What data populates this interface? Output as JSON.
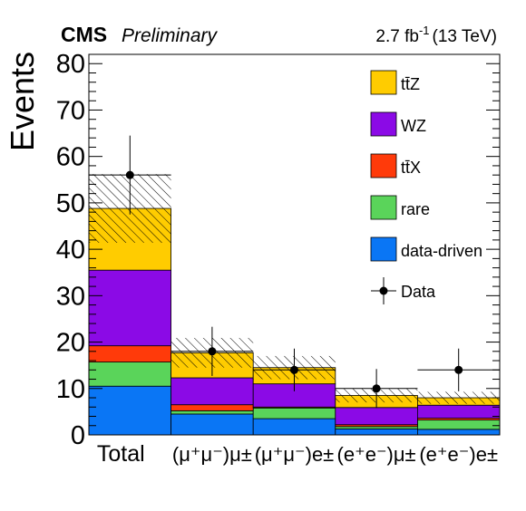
{
  "header": {
    "experiment": "CMS",
    "status": "Preliminary",
    "lumi_value": "2.7 fb",
    "lumi_exp": "-1",
    "energy": "(13 TeV)"
  },
  "chart_data": {
    "type": "bar",
    "stacked": true,
    "ylabel": "Events",
    "xlabel": "",
    "ylim": [
      0,
      82
    ],
    "yticks": [
      0,
      10,
      20,
      30,
      40,
      50,
      60,
      70,
      80
    ],
    "categories": [
      "Total",
      "(μ⁺μ⁻)μ±",
      "(μ⁺μ⁻)e±",
      "(e⁺e⁻)μ±",
      "(e⁺e⁻)e±"
    ],
    "series": [
      {
        "name": "data-driven",
        "color": "#0a76f5",
        "values": [
          10.5,
          4.5,
          3.5,
          1.3,
          1.2
        ]
      },
      {
        "name": "rare",
        "color": "#5ad45a",
        "values": [
          5.2,
          0.7,
          2.3,
          0.5,
          2.0
        ]
      },
      {
        "name": "tt̄X",
        "color": "#ff3a0a",
        "values": [
          3.5,
          1.3,
          0.2,
          0.4,
          0.4
        ]
      },
      {
        "name": "WZ",
        "color": "#8b0ae6",
        "values": [
          16.3,
          5.8,
          5.0,
          3.7,
          2.8
        ]
      },
      {
        "name": "tt̄Z",
        "color": "#ffcc00",
        "values": [
          13.3,
          5.4,
          3.5,
          2.6,
          1.6
        ]
      }
    ],
    "uncertainty": {
      "name": "",
      "values": [
        7.4,
        3.2,
        2.5,
        1.5,
        1.3
      ]
    },
    "data": {
      "name": "Data",
      "values": [
        56,
        18,
        14,
        10,
        14
      ],
      "errors": [
        8.5,
        5.3,
        4.6,
        4.2,
        4.6
      ]
    },
    "legend_placement": "top-right",
    "legend_order": [
      "tt̄Z",
      "WZ",
      "tt̄X",
      "rare",
      "data-driven",
      "Data"
    ]
  }
}
